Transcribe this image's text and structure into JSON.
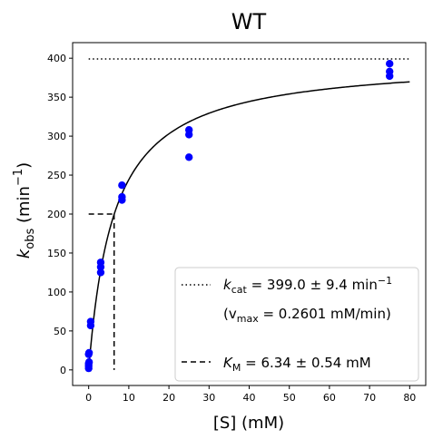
{
  "chart_data": {
    "type": "scatter",
    "title": "WT",
    "xlabel": "[S] (mM)",
    "ylabel_main": "k",
    "ylabel_sub": "obs",
    "ylabel_unit": "(min",
    "ylabel_unit_sup": "−1",
    "ylabel_unit_close": ")",
    "xlim": [
      -4,
      84
    ],
    "ylim": [
      -20,
      420
    ],
    "x_ticks": [
      0,
      10,
      20,
      30,
      40,
      50,
      60,
      70,
      80
    ],
    "y_ticks": [
      0,
      50,
      100,
      150,
      200,
      250,
      300,
      350,
      400
    ],
    "points": {
      "color": "#0000ff",
      "x": [
        0,
        0,
        0,
        0,
        0.1,
        0.1,
        0.5,
        0.5,
        3,
        3,
        3,
        8.3,
        8.3,
        8.3,
        25,
        25,
        25,
        75,
        75,
        75
      ],
      "y": [
        2,
        5,
        8,
        20,
        22,
        10,
        57,
        62,
        125,
        132,
        138,
        218,
        222,
        237,
        273,
        302,
        308,
        377,
        383,
        393
      ]
    },
    "fit": {
      "model": "michaelis-menten",
      "kcat": 399.0,
      "km": 6.34,
      "x_range": [
        0,
        80
      ],
      "color": "#000000"
    },
    "vmax_line": {
      "y": 399.0,
      "x_range": [
        0,
        80
      ],
      "style": "dotted"
    },
    "km_lines": {
      "x": 6.34,
      "y": 200,
      "style": "dashed"
    },
    "legend": {
      "position": "bottom-right",
      "kcat_symbol": "k",
      "kcat_sub": "cat",
      "kcat_text": " = 399.0 ± 9.4 min",
      "kcat_sup": "−1",
      "vmax_open": "(v",
      "vmax_sub": "max",
      "vmax_text": " = 0.2601 mM/min)",
      "km_symbol": "K",
      "km_sub": "M",
      "km_text": " = 6.34 ± 0.54 mM"
    }
  }
}
